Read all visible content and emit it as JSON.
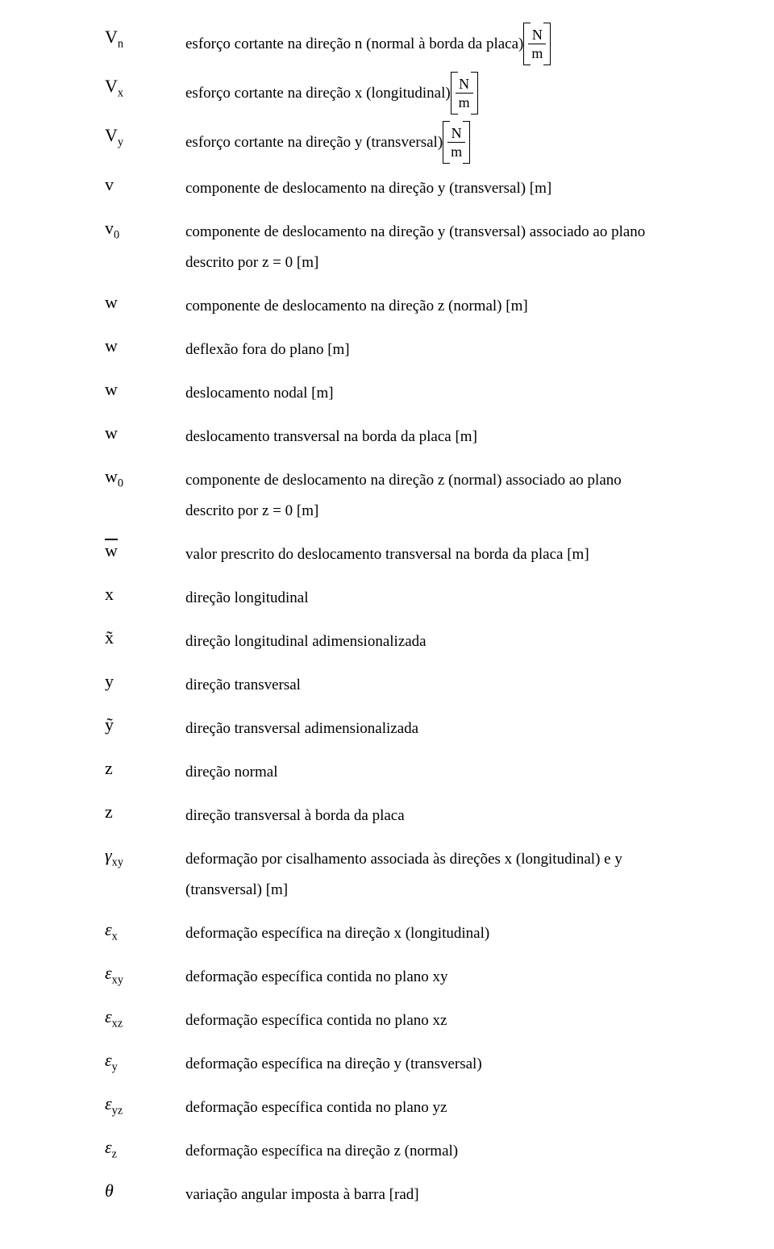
{
  "rows": [
    {
      "sym": "V<span class='sub'>n</span>",
      "desc": "esforço cortante na direção n (normal à borda da placa)",
      "brac": {
        "num": "N",
        "den": "m"
      }
    },
    {
      "sym": "V<span class='sub'>x</span>",
      "desc": "esforço cortante na direção x (longitudinal)",
      "brac": {
        "num": "N",
        "den": "m"
      }
    },
    {
      "sym": "V<span class='sub'>y</span>",
      "desc": "esforço cortante na direção y (transversal)",
      "brac": {
        "num": "N",
        "den": "m"
      }
    },
    {
      "sym": "v",
      "desc": "componente de deslocamento na direção y (transversal) [m]"
    },
    {
      "sym": "v<span class='sub'>0</span>",
      "desc": "componente de deslocamento na direção y (transversal) associado ao plano",
      "cont": "descrito por z = 0 [m]"
    },
    {
      "sym": "w",
      "desc": "componente de deslocamento na direção z (normal) [m]"
    },
    {
      "sym": "w",
      "desc": "deflexão fora do plano [m]"
    },
    {
      "sym": "w",
      "desc": "deslocamento nodal [m]"
    },
    {
      "sym": "w",
      "desc": "deslocamento transversal na borda da placa [m]"
    },
    {
      "sym": "w<span class='sub'>0</span>",
      "desc": "componente de deslocamento na direção z (normal) associado ao plano",
      "cont": "descrito por z = 0 [m]"
    },
    {
      "sym": "<span class='bar'>w</span>",
      "desc": "valor prescrito do deslocamento transversal na borda da placa [m]"
    },
    {
      "sym": "x",
      "desc": "direção longitudinal"
    },
    {
      "sym": "x&#771;",
      "desc": "direção longitudinal adimensionalizada"
    },
    {
      "sym": "y",
      "desc": "direção transversal"
    },
    {
      "sym": "y&#771;",
      "desc": "direção transversal adimensionalizada"
    },
    {
      "sym": "z",
      "desc": "direção normal"
    },
    {
      "sym": "z",
      "desc": "direção transversal à borda da placa"
    },
    {
      "sym": "<i>&gamma;</i><span class='sub'>xy</span>",
      "desc": "deformação por cisalhamento associada às direções x (longitudinal) e y",
      "cont": "(transversal) [m]"
    },
    {
      "sym": "<i>&epsilon;</i><span class='sub'>x</span>",
      "desc": "deformação específica na direção x (longitudinal)"
    },
    {
      "sym": "<i>&epsilon;</i><span class='sub'>xy</span>",
      "desc": "deformação específica contida no plano xy"
    },
    {
      "sym": "<i>&epsilon;</i><span class='sub'>xz</span>",
      "desc": "deformação específica contida no plano xz"
    },
    {
      "sym": "<i>&epsilon;</i><span class='sub'>y</span>",
      "desc": "deformação específica na direção y (transversal)"
    },
    {
      "sym": "<i>&epsilon;</i><span class='sub'>yz</span>",
      "desc": "deformação específica contida no plano yz"
    },
    {
      "sym": "<i>&epsilon;</i><span class='sub'>z</span>",
      "desc": "deformação específica na direção z (normal)"
    },
    {
      "sym": "<i>&theta;</i>",
      "desc": "variação angular imposta à barra [rad]"
    }
  ]
}
